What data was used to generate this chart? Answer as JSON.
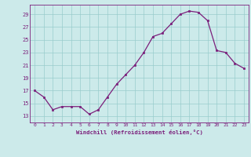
{
  "x": [
    0,
    1,
    2,
    3,
    4,
    5,
    6,
    7,
    8,
    9,
    10,
    11,
    12,
    13,
    14,
    15,
    16,
    17,
    18,
    19,
    20,
    21,
    22,
    23
  ],
  "y": [
    17,
    16,
    14,
    14.5,
    14.5,
    14.5,
    13.3,
    14,
    16,
    18,
    19.5,
    21,
    23,
    25.5,
    26,
    27.5,
    29.0,
    29.5,
    29.3,
    28.0,
    23.3,
    23.0,
    21.3,
    20.5
  ],
  "line_color": "#7B1F7B",
  "marker_color": "#7B1F7B",
  "bg_color": "#cceaea",
  "grid_color": "#99cccc",
  "xlabel": "Windchill (Refroidissement éolien,°C)",
  "xlabel_color": "#7B1F7B",
  "ytick_values": [
    13,
    15,
    17,
    19,
    21,
    23,
    25,
    27,
    29
  ],
  "ylim": [
    12.0,
    30.5
  ],
  "xlim": [
    -0.5,
    23.5
  ],
  "tick_color": "#7B1F7B",
  "font_family": "monospace"
}
